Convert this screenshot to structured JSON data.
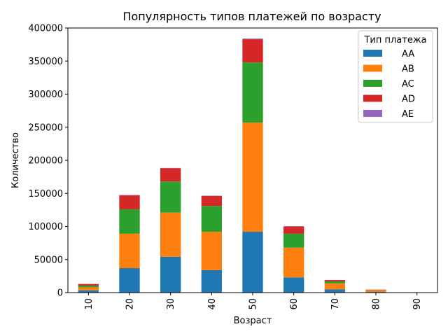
{
  "chart_data": {
    "type": "bar",
    "stacked": true,
    "title": "Популярность типов платежей по возрасту",
    "xlabel": "Возраст",
    "ylabel": "Количество",
    "categories": [
      "10",
      "20",
      "30",
      "40",
      "50",
      "60",
      "70",
      "80",
      "90"
    ],
    "ylim": [
      0,
      400000
    ],
    "yticks": [
      0,
      50000,
      100000,
      150000,
      200000,
      250000,
      300000,
      350000,
      400000
    ],
    "legend_title": "Тип платежа",
    "legend_position": "top-right",
    "grid": false,
    "series": [
      {
        "name": "AA",
        "color": "#1f77b4",
        "values": [
          3500,
          37000,
          54000,
          34000,
          92000,
          23000,
          5000,
          1000,
          100
        ]
      },
      {
        "name": "AB",
        "color": "#ff7f0e",
        "values": [
          4500,
          52000,
          67000,
          58000,
          165000,
          45000,
          9000,
          2500,
          200
        ]
      },
      {
        "name": "AC",
        "color": "#2ca02c",
        "values": [
          2500,
          37000,
          47000,
          39000,
          91000,
          21000,
          3000,
          300,
          50
        ]
      },
      {
        "name": "AD",
        "color": "#d62728",
        "values": [
          2500,
          21000,
          20000,
          15000,
          35000,
          11000,
          2000,
          700,
          50
        ]
      },
      {
        "name": "AE",
        "color": "#9467bd",
        "values": [
          100,
          500,
          500,
          500,
          1000,
          300,
          100,
          0,
          0
        ]
      }
    ]
  }
}
